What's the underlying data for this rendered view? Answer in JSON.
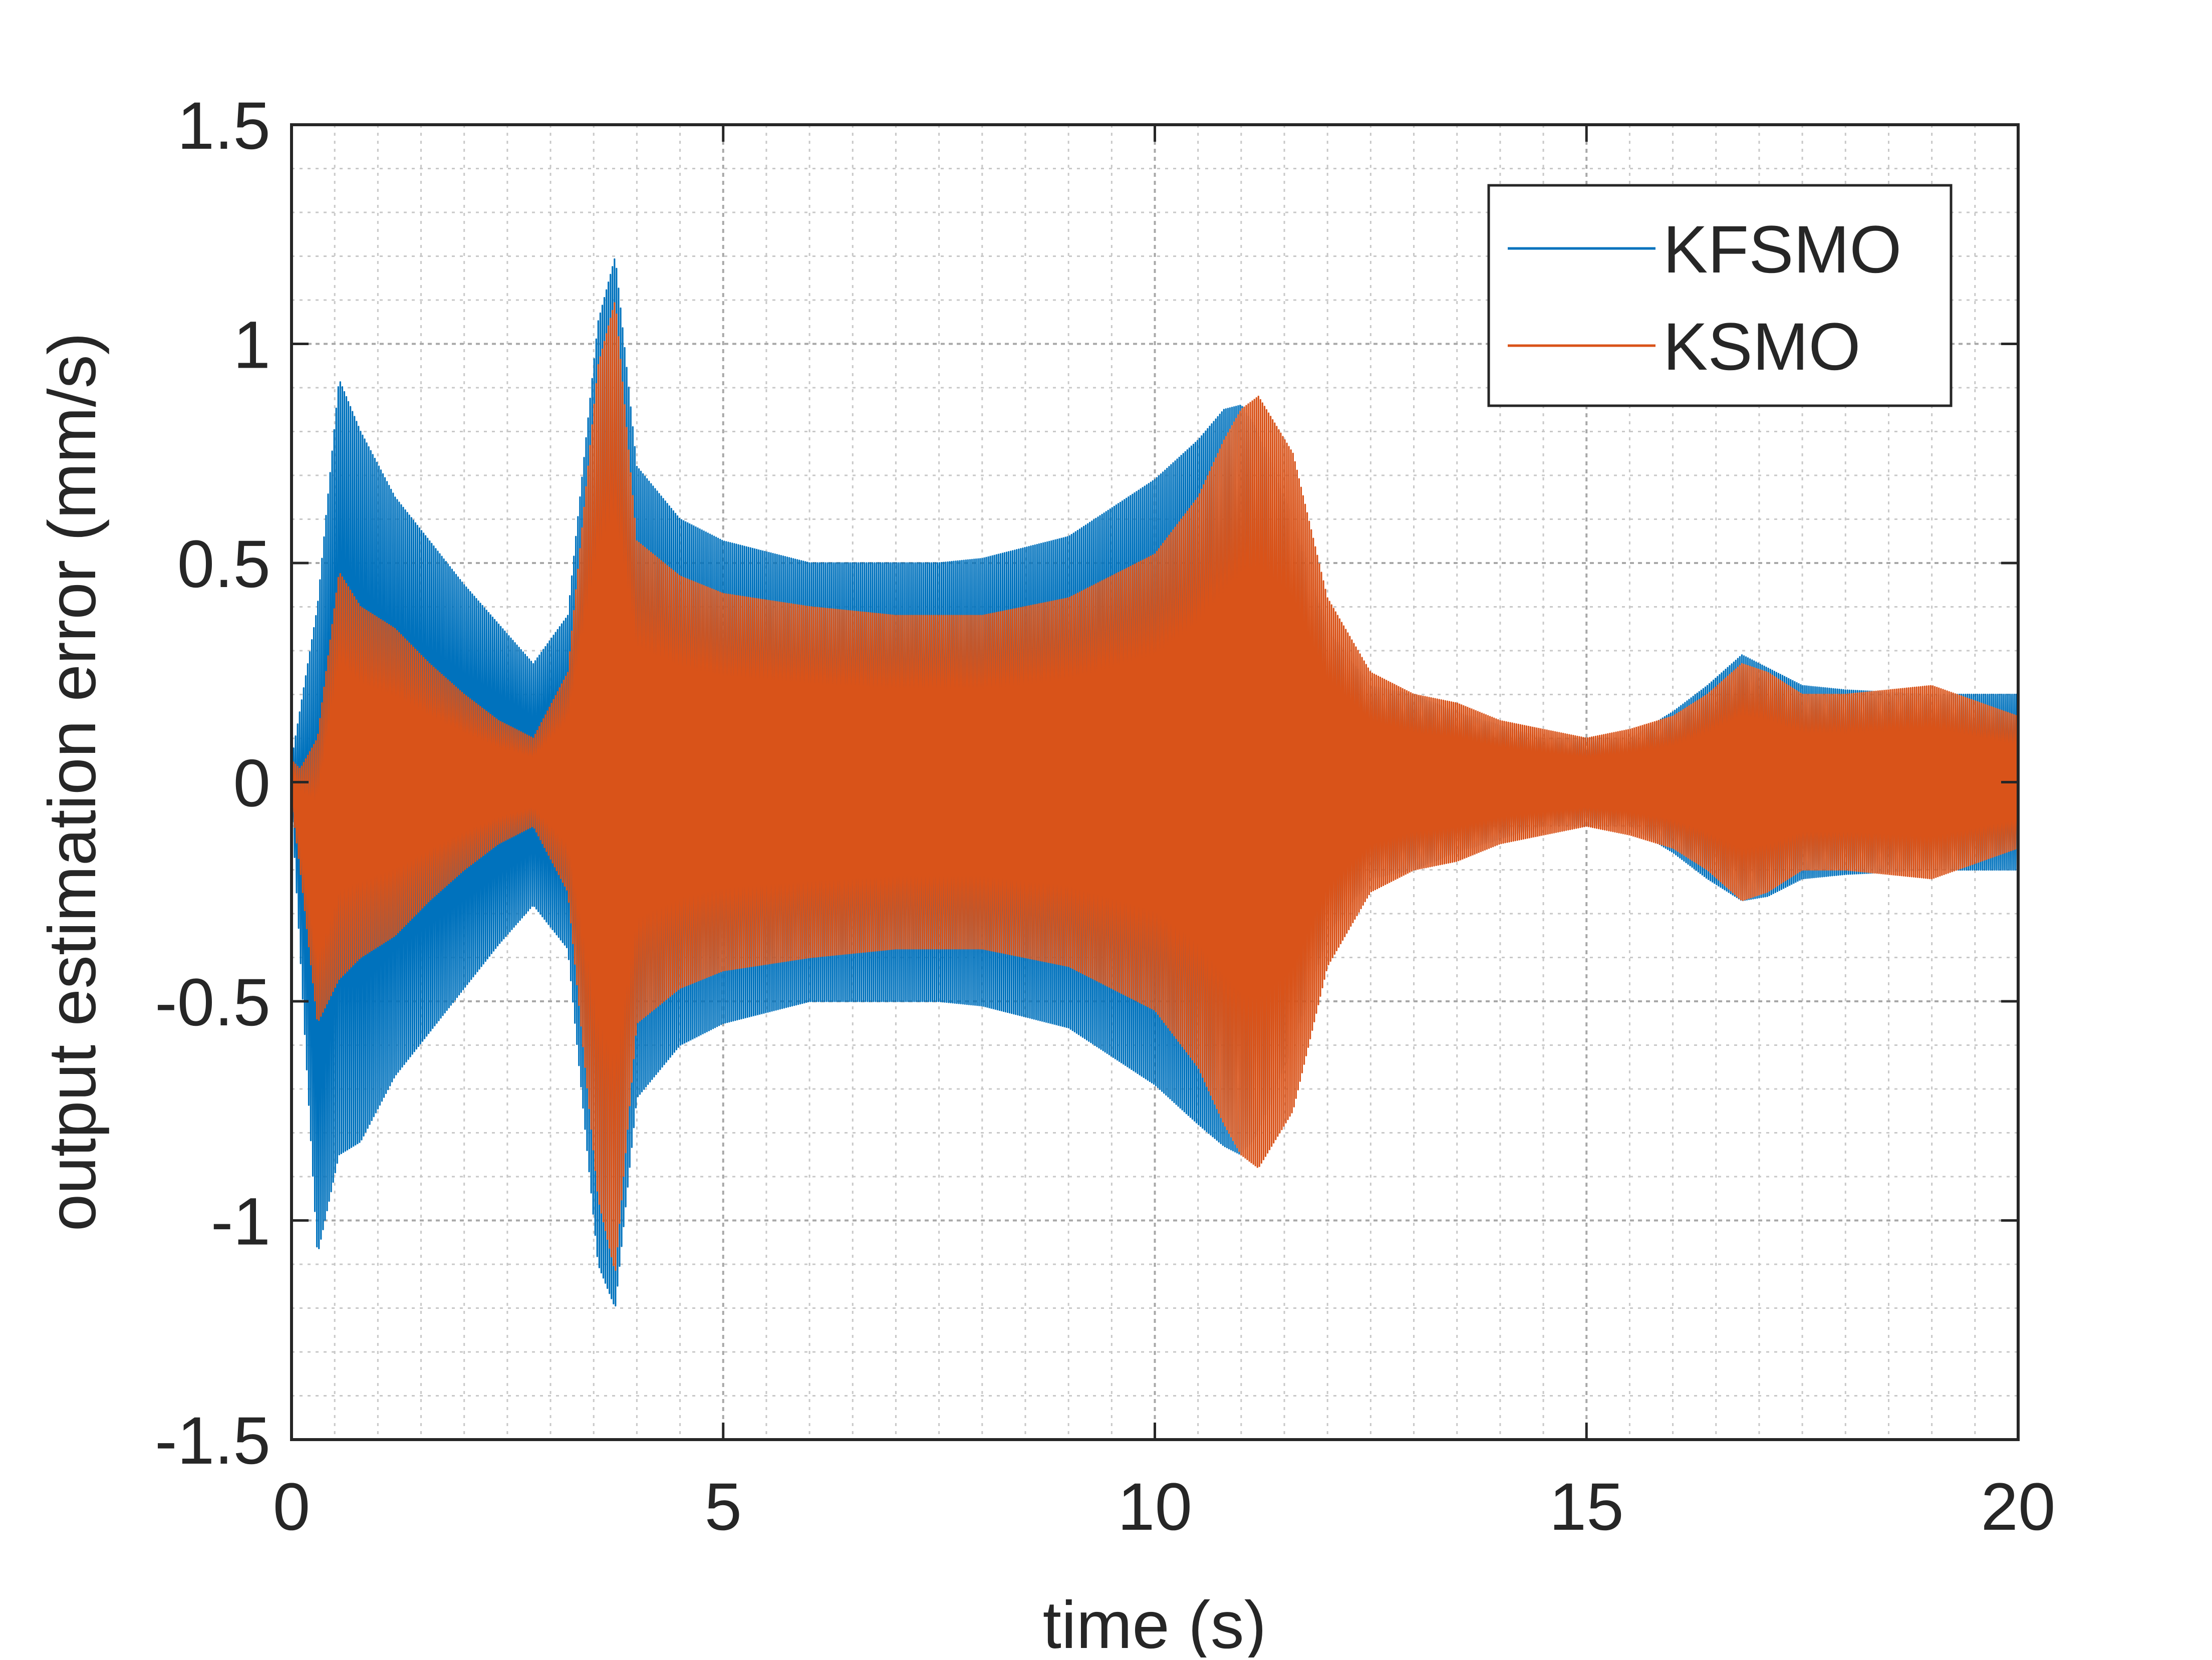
{
  "chart_data": {
    "type": "line",
    "title": "",
    "xlabel": "time (s)",
    "ylabel": "output estimation error (mm/s)",
    "xlim": [
      0,
      20
    ],
    "ylim": [
      -1.5,
      1.5
    ],
    "xticks": [
      0,
      5,
      10,
      15,
      20
    ],
    "xtick_labels": [
      "0",
      "5",
      "10",
      "15",
      "20"
    ],
    "yticks": [
      -1.5,
      -1,
      -0.5,
      0,
      0.5,
      1,
      1.5
    ],
    "ytick_labels": [
      "-1.5",
      "-1",
      "-0.5",
      "0",
      "0.5",
      "1",
      "1.5"
    ],
    "grid": true,
    "minor_grid": true,
    "legend_position": "top-right",
    "series": [
      {
        "name": "KFSMO",
        "color": "#0072BD",
        "style": "oscillating envelope",
        "t": [
          0,
          0.3,
          0.55,
          0.8,
          1.2,
          1.6,
          2.0,
          2.4,
          2.8,
          3.2,
          3.55,
          3.75,
          4.0,
          4.5,
          5.0,
          6.0,
          7.0,
          7.5,
          8.0,
          9.0,
          10.0,
          10.5,
          10.8,
          11.0,
          11.2,
          11.6,
          12.0,
          12.5,
          13.0,
          13.5,
          14.0,
          14.5,
          15.0,
          15.5,
          16.0,
          16.4,
          16.8,
          17.1,
          17.5,
          18.0,
          19.0,
          20.0
        ],
        "upper": [
          0.05,
          0.4,
          0.92,
          0.8,
          0.65,
          0.55,
          0.45,
          0.36,
          0.27,
          0.38,
          1.05,
          1.2,
          0.72,
          0.6,
          0.55,
          0.5,
          0.5,
          0.5,
          0.51,
          0.56,
          0.69,
          0.78,
          0.85,
          0.86,
          0.8,
          0.6,
          0.35,
          0.22,
          0.2,
          0.16,
          0.13,
          0.1,
          0.1,
          0.1,
          0.16,
          0.22,
          0.29,
          0.26,
          0.22,
          0.21,
          0.2,
          0.2
        ],
        "lower": [
          -0.05,
          -1.08,
          -0.85,
          -0.82,
          -0.67,
          -0.57,
          -0.47,
          -0.37,
          -0.28,
          -0.38,
          -1.1,
          -1.2,
          -0.72,
          -0.6,
          -0.55,
          -0.5,
          -0.5,
          -0.5,
          -0.51,
          -0.56,
          -0.69,
          -0.78,
          -0.83,
          -0.85,
          -0.8,
          -0.6,
          -0.35,
          -0.22,
          -0.2,
          -0.16,
          -0.13,
          -0.1,
          -0.1,
          -0.1,
          -0.16,
          -0.22,
          -0.27,
          -0.26,
          -0.22,
          -0.21,
          -0.2,
          -0.2
        ]
      },
      {
        "name": "KSMO",
        "color": "#D95319",
        "style": "oscillating envelope",
        "t": [
          0,
          0.1,
          0.3,
          0.55,
          0.8,
          1.2,
          1.6,
          2.0,
          2.4,
          2.8,
          3.2,
          3.55,
          3.75,
          4.0,
          4.5,
          5.0,
          6.0,
          7.0,
          7.5,
          8.0,
          9.0,
          10.0,
          10.5,
          10.8,
          11.0,
          11.2,
          11.6,
          12.0,
          12.5,
          13.0,
          13.5,
          14.0,
          14.5,
          15.0,
          15.5,
          16.0,
          16.4,
          16.8,
          17.1,
          17.5,
          18.0,
          19.0,
          20.0
        ],
        "upper": [
          0.05,
          0.03,
          0.1,
          0.48,
          0.4,
          0.35,
          0.27,
          0.2,
          0.14,
          0.1,
          0.25,
          0.95,
          1.1,
          0.55,
          0.47,
          0.43,
          0.4,
          0.38,
          0.38,
          0.38,
          0.42,
          0.52,
          0.65,
          0.78,
          0.85,
          0.88,
          0.75,
          0.42,
          0.25,
          0.2,
          0.18,
          0.14,
          0.12,
          0.1,
          0.12,
          0.15,
          0.2,
          0.27,
          0.25,
          0.2,
          0.2,
          0.22,
          0.15
        ],
        "lower": [
          -0.05,
          -0.2,
          -0.55,
          -0.45,
          -0.4,
          -0.35,
          -0.27,
          -0.2,
          -0.14,
          -0.1,
          -0.25,
          -0.95,
          -1.12,
          -0.55,
          -0.47,
          -0.43,
          -0.4,
          -0.38,
          -0.38,
          -0.38,
          -0.42,
          -0.52,
          -0.65,
          -0.78,
          -0.85,
          -0.88,
          -0.75,
          -0.42,
          -0.25,
          -0.2,
          -0.18,
          -0.14,
          -0.12,
          -0.1,
          -0.12,
          -0.15,
          -0.2,
          -0.27,
          -0.25,
          -0.2,
          -0.2,
          -0.22,
          -0.15
        ]
      }
    ]
  }
}
